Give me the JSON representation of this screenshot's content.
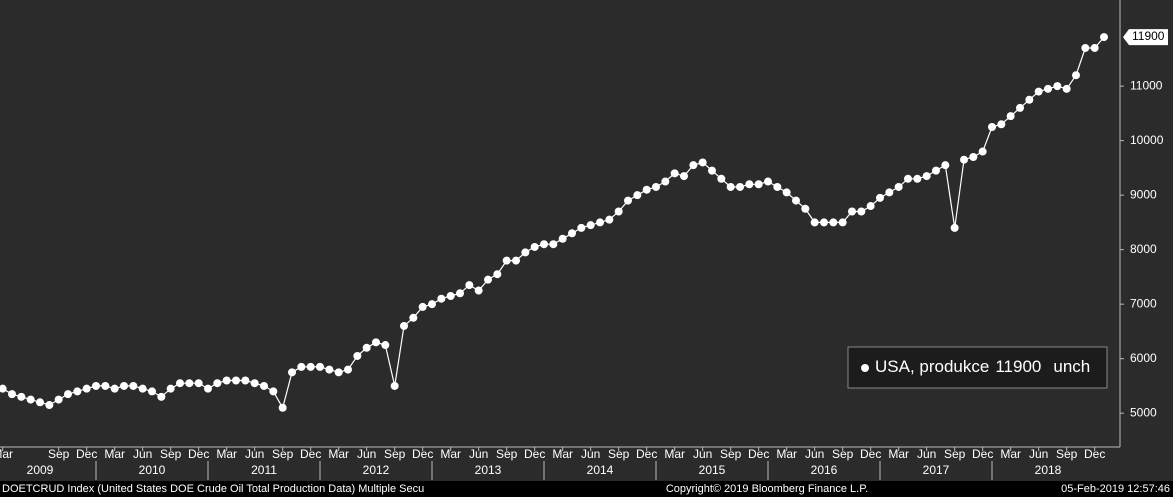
{
  "chart_data": {
    "type": "line",
    "series": [
      {
        "name": "USA, produkce",
        "color": "#ffffff",
        "values": [
          5450,
          5350,
          5300,
          5250,
          5200,
          5150,
          5250,
          5350,
          5400,
          5450,
          5500,
          5500,
          5450,
          5500,
          5500,
          5450,
          5400,
          5300,
          5450,
          5550,
          5550,
          5550,
          5450,
          5550,
          5600,
          5600,
          5600,
          5550,
          5500,
          5400,
          5100,
          5750,
          5850,
          5850,
          5850,
          5800,
          5750,
          5800,
          6050,
          6200,
          6300,
          6250,
          5500,
          6600,
          6750,
          6950,
          7000,
          7100,
          7150,
          7200,
          7350,
          7250,
          7450,
          7550,
          7800,
          7800,
          7950,
          8050,
          8100,
          8100,
          8200,
          8300,
          8400,
          8450,
          8500,
          8550,
          8700,
          8900,
          9000,
          9100,
          9150,
          9250,
          9400,
          9350,
          9550,
          9600,
          9450,
          9300,
          9150,
          9150,
          9200,
          9200,
          9250,
          9150,
          9050,
          8900,
          8750,
          8500,
          8500,
          8500,
          8500,
          8700,
          8700,
          8800,
          8950,
          9050,
          9150,
          9300,
          9300,
          9350,
          9450,
          9550,
          8400,
          9650,
          9700,
          9800,
          10250,
          10300,
          10450,
          10600,
          10750,
          10900,
          10950,
          11000,
          10950,
          11200,
          11700,
          11700,
          11900
        ]
      }
    ],
    "x": [
      "2009-03",
      "2009-04",
      "2009-05",
      "2009-06",
      "2009-07",
      "2009-08",
      "2009-09",
      "2009-10",
      "2009-11",
      "2009-12",
      "2010-01",
      "2010-02",
      "2010-03",
      "2010-04",
      "2010-05",
      "2010-06",
      "2010-07",
      "2010-08",
      "2010-09",
      "2010-10",
      "2010-11",
      "2010-12",
      "2011-01",
      "2011-02",
      "2011-03",
      "2011-04",
      "2011-05",
      "2011-06",
      "2011-07",
      "2011-08",
      "2011-09",
      "2011-10",
      "2011-11",
      "2011-12",
      "2012-01",
      "2012-02",
      "2012-03",
      "2012-04",
      "2012-05",
      "2012-06",
      "2012-07",
      "2012-08",
      "2012-09",
      "2012-10",
      "2012-11",
      "2012-12",
      "2013-01",
      "2013-02",
      "2013-03",
      "2013-04",
      "2013-05",
      "2013-06",
      "2013-07",
      "2013-08",
      "2013-09",
      "2013-10",
      "2013-11",
      "2013-12",
      "2014-01",
      "2014-02",
      "2014-03",
      "2014-04",
      "2014-05",
      "2014-06",
      "2014-07",
      "2014-08",
      "2014-09",
      "2014-10",
      "2014-11",
      "2014-12",
      "2015-01",
      "2015-02",
      "2015-03",
      "2015-04",
      "2015-05",
      "2015-06",
      "2015-07",
      "2015-08",
      "2015-09",
      "2015-10",
      "2015-11",
      "2015-12",
      "2016-01",
      "2016-02",
      "2016-03",
      "2016-04",
      "2016-05",
      "2016-06",
      "2016-07",
      "2016-08",
      "2016-09",
      "2016-10",
      "2016-11",
      "2016-12",
      "2017-01",
      "2017-02",
      "2017-03",
      "2017-04",
      "2017-05",
      "2017-06",
      "2017-07",
      "2017-08",
      "2017-09",
      "2017-10",
      "2017-11",
      "2017-12",
      "2018-01",
      "2018-02",
      "2018-03",
      "2018-04",
      "2018-05",
      "2018-06",
      "2018-07",
      "2018-08",
      "2018-09",
      "2018-10",
      "2018-11",
      "2018-12",
      "2019-01"
    ],
    "xticks": [
      {
        "value": "2009-03",
        "label": "Mar"
      },
      {
        "value": "2009-09",
        "label": "Sep"
      },
      {
        "value": "2009-12",
        "label": "Dec"
      },
      {
        "value": "2010-03",
        "label": "Mar"
      },
      {
        "value": "2010-06",
        "label": "Jun"
      },
      {
        "value": "2010-09",
        "label": "Sep"
      },
      {
        "value": "2010-12",
        "label": "Dec"
      },
      {
        "value": "2011-03",
        "label": "Mar"
      },
      {
        "value": "2011-06",
        "label": "Jun"
      },
      {
        "value": "2011-09",
        "label": "Sep"
      },
      {
        "value": "2011-12",
        "label": "Dec"
      },
      {
        "value": "2012-03",
        "label": "Mar"
      },
      {
        "value": "2012-06",
        "label": "Jun"
      },
      {
        "value": "2012-09",
        "label": "Sep"
      },
      {
        "value": "2012-12",
        "label": "Dec"
      },
      {
        "value": "2013-03",
        "label": "Mar"
      },
      {
        "value": "2013-06",
        "label": "Jun"
      },
      {
        "value": "2013-09",
        "label": "Sep"
      },
      {
        "value": "2013-12",
        "label": "Dec"
      },
      {
        "value": "2014-03",
        "label": "Mar"
      },
      {
        "value": "2014-06",
        "label": "Jun"
      },
      {
        "value": "2014-09",
        "label": "Sep"
      },
      {
        "value": "2014-12",
        "label": "Dec"
      },
      {
        "value": "2015-03",
        "label": "Mar"
      },
      {
        "value": "2015-06",
        "label": "Jun"
      },
      {
        "value": "2015-09",
        "label": "Sep"
      },
      {
        "value": "2015-12",
        "label": "Dec"
      },
      {
        "value": "2016-03",
        "label": "Mar"
      },
      {
        "value": "2016-06",
        "label": "Jun"
      },
      {
        "value": "2016-09",
        "label": "Sep"
      },
      {
        "value": "2016-12",
        "label": "Dec"
      },
      {
        "value": "2017-03",
        "label": "Mar"
      },
      {
        "value": "2017-06",
        "label": "Jun"
      },
      {
        "value": "2017-09",
        "label": "Sep"
      },
      {
        "value": "2017-12",
        "label": "Dec"
      },
      {
        "value": "2018-03",
        "label": "Mar"
      },
      {
        "value": "2018-06",
        "label": "Jun"
      },
      {
        "value": "2018-09",
        "label": "Sep"
      },
      {
        "value": "2018-12",
        "label": "Dec"
      }
    ],
    "year_ticks": [
      "2009",
      "2010",
      "2011",
      "2012",
      "2013",
      "2014",
      "2015",
      "2016",
      "2017",
      "2018"
    ],
    "ylim": [
      4380,
      12580
    ],
    "yticks": [
      5000,
      6000,
      7000,
      8000,
      9000,
      10000,
      11000
    ],
    "legend_change": "unch",
    "legend_position": "lower right",
    "footer_left": "DOETCRUD Index (United States DOE Crude Oil Total Production Data) Multiple Secu",
    "footer_center": "Copyright© 2019 Bloomberg Finance L.P.",
    "footer_right": "05-Feb-2019 12:57:46"
  }
}
